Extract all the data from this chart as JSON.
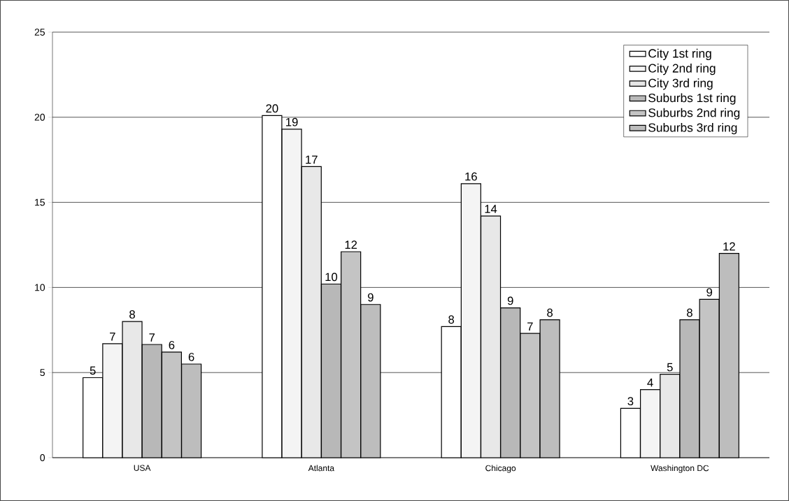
{
  "chart_data": {
    "type": "bar",
    "categories": [
      "USA",
      "Atlanta",
      "Chicago",
      "Washington DC"
    ],
    "series": [
      {
        "name": "City 1st ring",
        "color": "#ffffff",
        "values": [
          4.7,
          20.1,
          7.7,
          2.9
        ],
        "value_labels": [
          "5",
          "20",
          "8",
          "3"
        ]
      },
      {
        "name": "City 2nd ring",
        "color": "#f4f4f4",
        "values": [
          6.7,
          19.3,
          16.1,
          4.0
        ],
        "value_labels": [
          "7",
          "19",
          "16",
          "4"
        ]
      },
      {
        "name": "City 3rd ring",
        "color": "#e8e8e8",
        "values": [
          8.0,
          17.1,
          14.2,
          4.9
        ],
        "value_labels": [
          "8",
          "17",
          "14",
          "5"
        ]
      },
      {
        "name": "Suburbs 1st ring",
        "color": "#b8b8b8",
        "values": [
          6.65,
          10.2,
          8.8,
          8.1
        ],
        "value_labels": [
          "7",
          "10",
          "9",
          "8"
        ]
      },
      {
        "name": "Suburbs 2nd ring",
        "color": "#c4c4c4",
        "values": [
          6.2,
          12.1,
          7.3,
          9.3
        ],
        "value_labels": [
          "6",
          "12",
          "7",
          "9"
        ]
      },
      {
        "name": "Suburbs 3rd ring",
        "color": "#bdbdbd",
        "values": [
          5.5,
          9.0,
          8.1,
          12.0
        ],
        "value_labels": [
          "6",
          "9",
          "8",
          "12"
        ]
      }
    ],
    "ylim": [
      0,
      25
    ],
    "yticks": [
      0,
      5,
      10,
      15,
      20,
      25
    ],
    "grid": "y",
    "legend": "top right"
  }
}
